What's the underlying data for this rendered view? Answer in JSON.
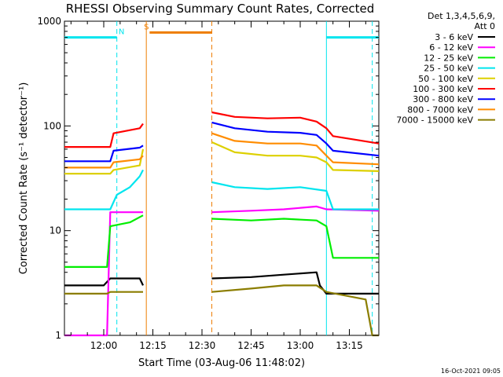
{
  "chart_data": {
    "type": "line",
    "title": "RHESSI Observing Summary Count Rates, Corrected",
    "xlabel": "Start Time (03-Aug-06 11:48:02)",
    "ylabel": "Corrected Count Rate (s⁻¹ detector⁻¹)",
    "y_scale": "log",
    "ylim": [
      1,
      1000
    ],
    "xlim": [
      "11:48",
      "13:24"
    ],
    "x_ticks": [
      "12:00",
      "12:15",
      "12:30",
      "12:45",
      "13:00",
      "13:15"
    ],
    "y_ticks": [
      "1",
      "10",
      "100",
      "1000"
    ],
    "legend_header": [
      "Det 1,3,4,5,6,9,",
      "Att 0"
    ],
    "legend_position": "right",
    "footer_date": "16-Oct-2021 09:05",
    "flags": [
      {
        "label": "N",
        "color": "#00e5ee",
        "level": 700,
        "segments": [
          [
            "11:48",
            "12:04"
          ],
          [
            "13:08",
            "13:24"
          ]
        ]
      },
      {
        "label": "S",
        "color": "#ee7d00",
        "level": 780,
        "segments": [
          [
            "12:14",
            "12:33"
          ]
        ]
      }
    ],
    "markers": [
      {
        "time": "12:04",
        "color": "#00e5ee",
        "style": "dashed"
      },
      {
        "time": "13:08",
        "color": "#00e5ee",
        "style": "solid"
      },
      {
        "time": "13:22",
        "color": "#00e5ee",
        "style": "dashed"
      },
      {
        "time": "12:13",
        "color": "#ee7d00",
        "style": "solid"
      },
      {
        "time": "12:33",
        "color": "#ee7d00",
        "style": "dashed"
      }
    ],
    "gap": [
      "12:14",
      "12:33"
    ],
    "series": [
      {
        "name": "3 - 6 keV",
        "color": "#000000",
        "points": [
          [
            "11:48",
            3
          ],
          [
            "12:00",
            3
          ],
          [
            "12:02",
            3.5
          ],
          [
            "12:11",
            3.5
          ],
          [
            "12:12",
            3
          ],
          [
            "12:33",
            3.5
          ],
          [
            "12:45",
            3.6
          ],
          [
            "12:55",
            3.8
          ],
          [
            "13:05",
            4
          ],
          [
            "13:06",
            3
          ],
          [
            "13:08",
            2.5
          ],
          [
            "13:24",
            2.5
          ]
        ]
      },
      {
        "name": "6 - 12 keV",
        "color": "#ff00ff",
        "points": [
          [
            "11:48",
            1
          ],
          [
            "12:01",
            1
          ],
          [
            "12:02",
            15
          ],
          [
            "12:12",
            15
          ],
          [
            "12:33",
            15
          ],
          [
            "12:45",
            15.5
          ],
          [
            "12:55",
            16
          ],
          [
            "13:05",
            17
          ],
          [
            "13:08",
            16
          ],
          [
            "13:24",
            15.5
          ]
        ]
      },
      {
        "name": "12 - 25 keV",
        "color": "#00ee00",
        "points": [
          [
            "11:48",
            4.5
          ],
          [
            "12:01",
            4.5
          ],
          [
            "12:02",
            11
          ],
          [
            "12:08",
            12
          ],
          [
            "12:12",
            14
          ],
          [
            "12:33",
            13
          ],
          [
            "12:45",
            12.5
          ],
          [
            "12:55",
            13
          ],
          [
            "13:05",
            12.5
          ],
          [
            "13:08",
            11
          ],
          [
            "13:10",
            5.5
          ],
          [
            "13:24",
            5.5
          ]
        ]
      },
      {
        "name": "25 - 50 keV",
        "color": "#00e5ee",
        "points": [
          [
            "11:48",
            16
          ],
          [
            "12:02",
            16
          ],
          [
            "12:04",
            22
          ],
          [
            "12:08",
            26
          ],
          [
            "12:11",
            33
          ],
          [
            "12:12",
            38
          ],
          [
            "12:33",
            29
          ],
          [
            "12:40",
            26
          ],
          [
            "12:50",
            25
          ],
          [
            "13:00",
            26
          ],
          [
            "13:08",
            24
          ],
          [
            "13:10",
            16
          ],
          [
            "13:24",
            16
          ]
        ]
      },
      {
        "name": "50 - 100 keV",
        "color": "#ddd000",
        "points": [
          [
            "11:48",
            35
          ],
          [
            "12:02",
            35
          ],
          [
            "12:03",
            38
          ],
          [
            "12:11",
            42
          ],
          [
            "12:12",
            60
          ],
          [
            "12:33",
            70
          ],
          [
            "12:40",
            56
          ],
          [
            "12:50",
            52
          ],
          [
            "13:00",
            52
          ],
          [
            "13:05",
            50
          ],
          [
            "13:08",
            45
          ],
          [
            "13:10",
            38
          ],
          [
            "13:24",
            37
          ]
        ]
      },
      {
        "name": "100 - 300 keV",
        "color": "#ff0000",
        "points": [
          [
            "11:48",
            63
          ],
          [
            "12:02",
            63
          ],
          [
            "12:03",
            85
          ],
          [
            "12:11",
            95
          ],
          [
            "12:12",
            105
          ],
          [
            "12:33",
            135
          ],
          [
            "12:40",
            122
          ],
          [
            "12:50",
            118
          ],
          [
            "13:00",
            120
          ],
          [
            "13:05",
            110
          ],
          [
            "13:08",
            95
          ],
          [
            "13:10",
            80
          ],
          [
            "13:24",
            68
          ]
        ]
      },
      {
        "name": "300 - 800 keV",
        "color": "#0000ff",
        "points": [
          [
            "11:48",
            46
          ],
          [
            "12:02",
            46
          ],
          [
            "12:03",
            58
          ],
          [
            "12:11",
            62
          ],
          [
            "12:12",
            65
          ],
          [
            "12:33",
            108
          ],
          [
            "12:40",
            95
          ],
          [
            "12:50",
            88
          ],
          [
            "13:00",
            86
          ],
          [
            "13:05",
            82
          ],
          [
            "13:08",
            68
          ],
          [
            "13:10",
            58
          ],
          [
            "13:24",
            52
          ]
        ]
      },
      {
        "name": "800 - 7000 keV",
        "color": "#ff8c00",
        "points": [
          [
            "11:48",
            40
          ],
          [
            "12:02",
            40
          ],
          [
            "12:03",
            45
          ],
          [
            "12:11",
            48
          ],
          [
            "12:12",
            52
          ],
          [
            "12:33",
            85
          ],
          [
            "12:40",
            72
          ],
          [
            "12:50",
            68
          ],
          [
            "13:00",
            68
          ],
          [
            "13:05",
            65
          ],
          [
            "13:08",
            52
          ],
          [
            "13:10",
            45
          ],
          [
            "13:24",
            43
          ]
        ]
      },
      {
        "name": "7000 - 15000 keV",
        "color": "#8b7d00",
        "points": [
          [
            "11:48",
            2.5
          ],
          [
            "12:01",
            2.5
          ],
          [
            "12:02",
            2.6
          ],
          [
            "12:12",
            2.6
          ],
          [
            "12:33",
            2.6
          ],
          [
            "12:45",
            2.8
          ],
          [
            "12:55",
            3
          ],
          [
            "13:05",
            3
          ],
          [
            "13:08",
            2.6
          ],
          [
            "13:20",
            2.2
          ],
          [
            "13:22",
            1
          ],
          [
            "13:24",
            1
          ]
        ]
      }
    ]
  }
}
